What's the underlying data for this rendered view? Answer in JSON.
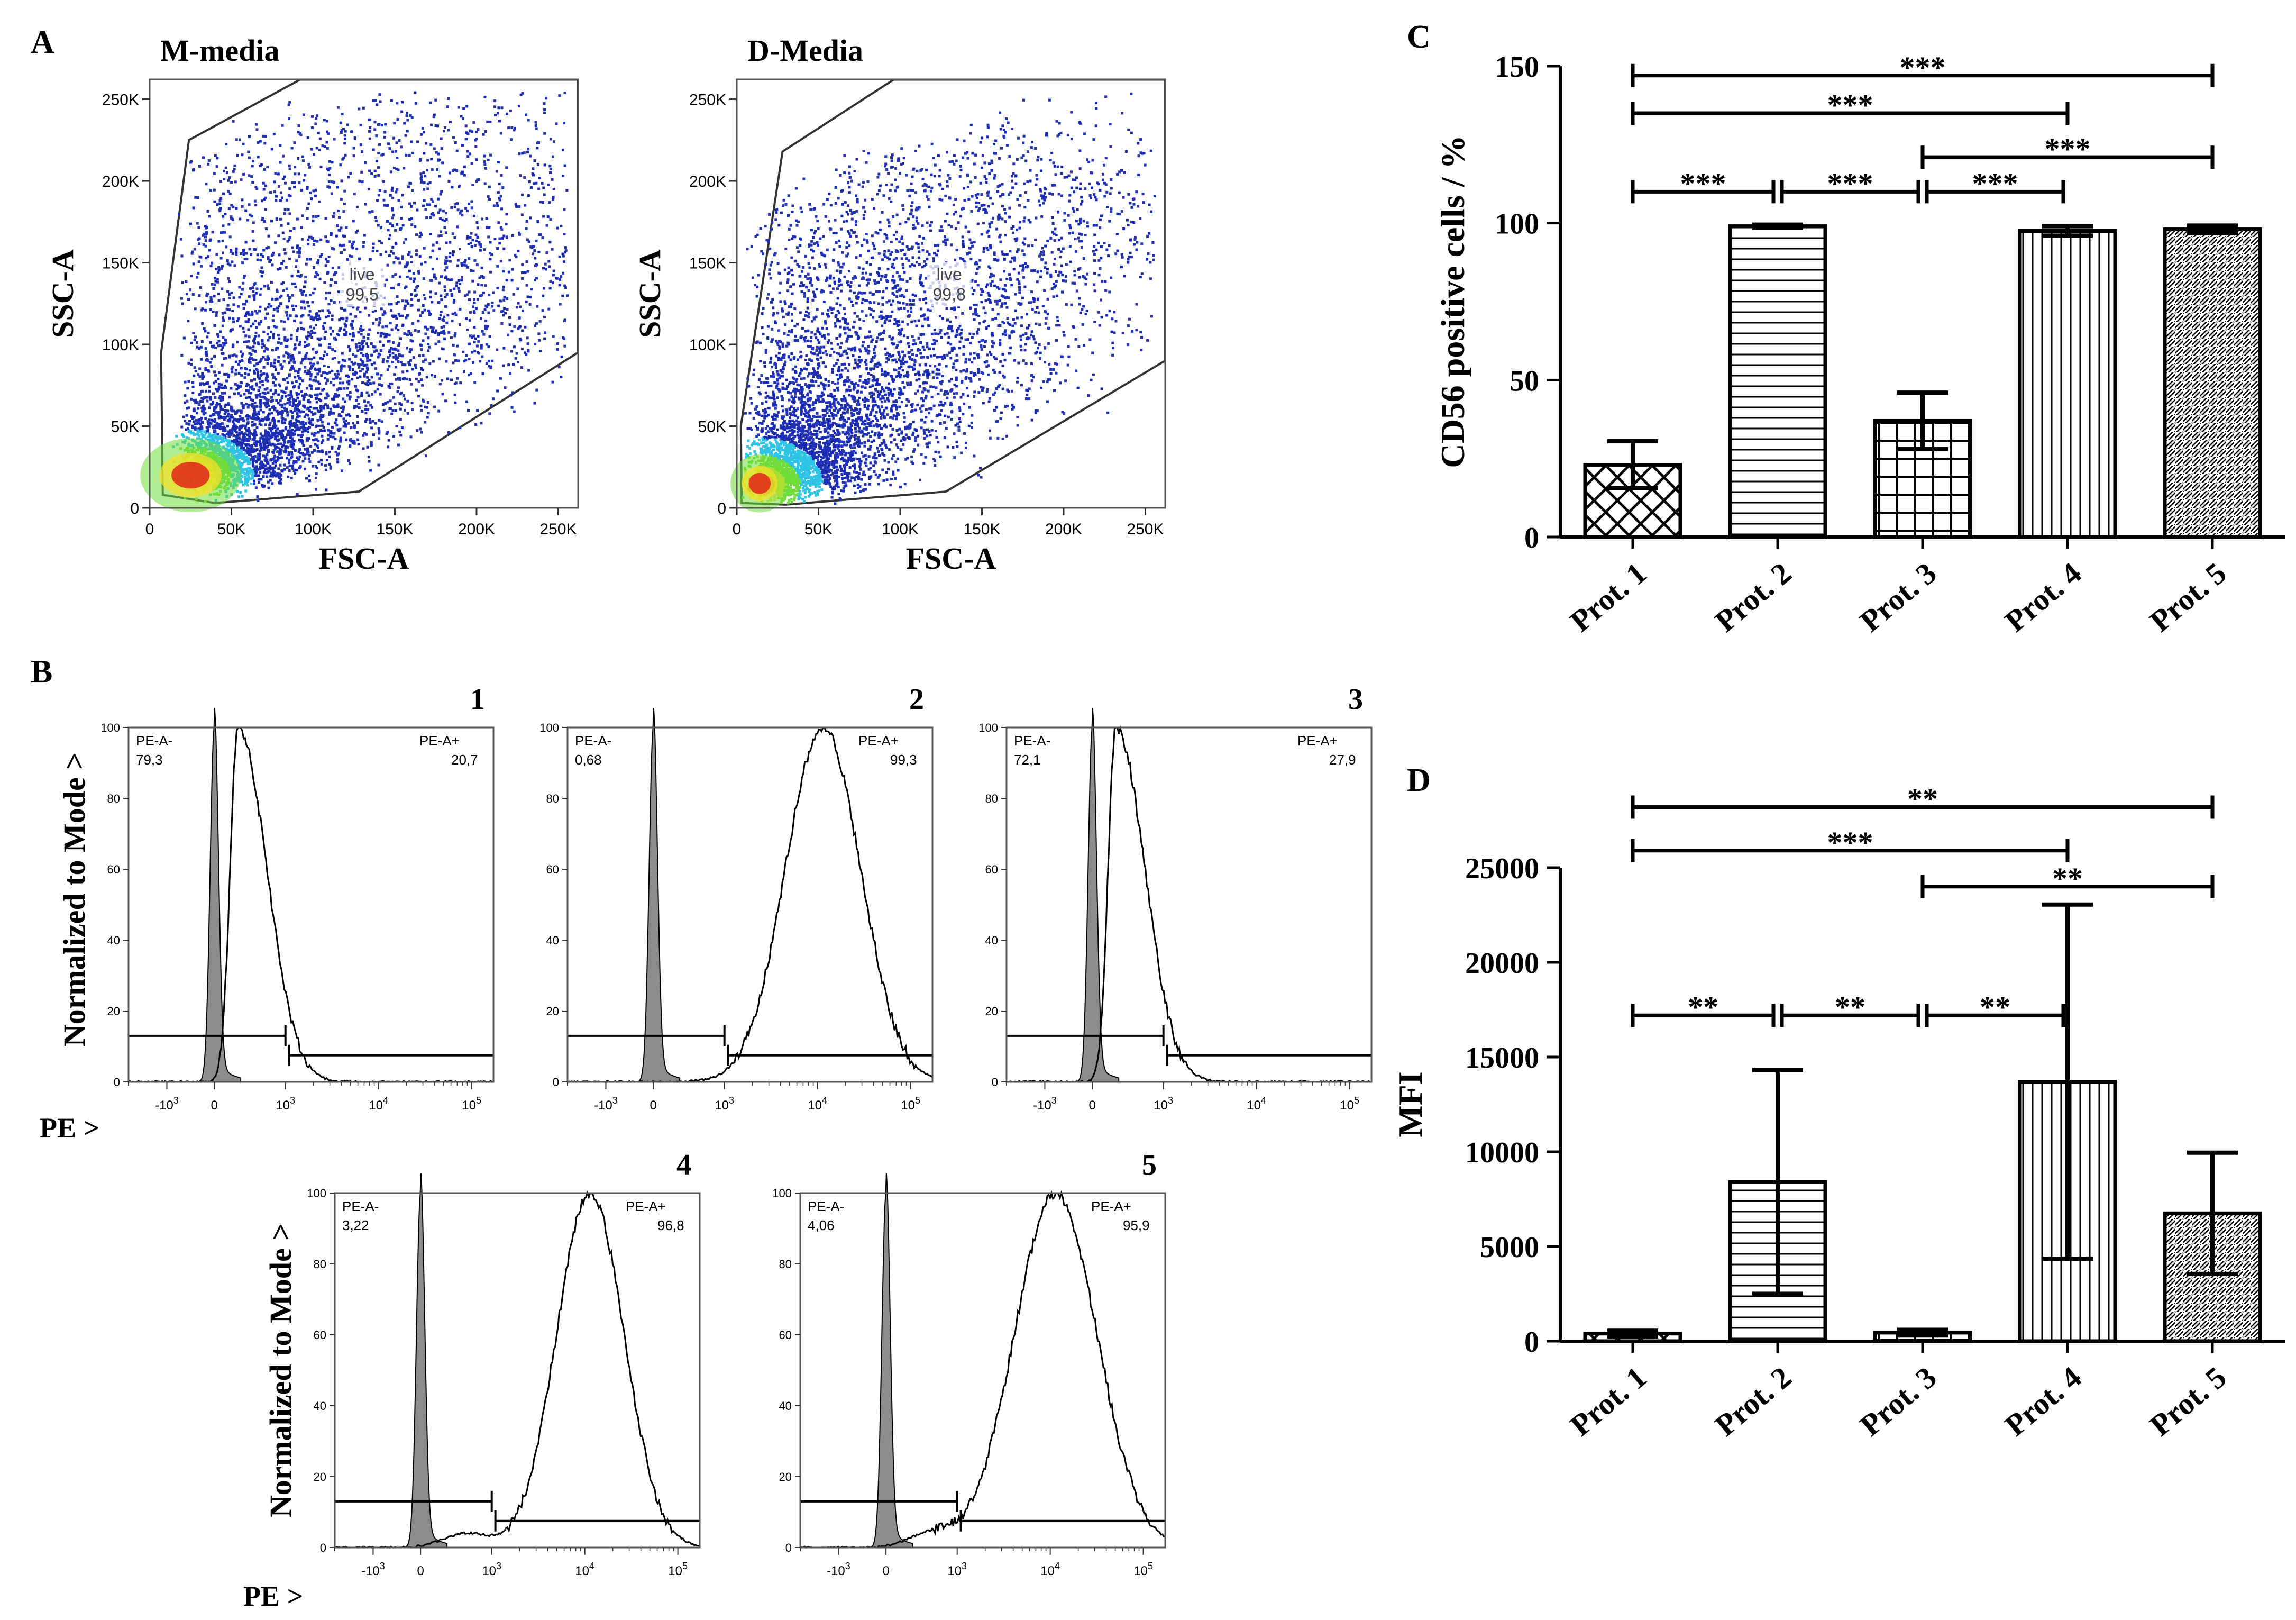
{
  "panel_labels": {
    "A": "A",
    "B": "B",
    "C": "C",
    "D": "D"
  },
  "colors": {
    "ink": "#000000",
    "fill_grey": "#8c8c8c",
    "dot_blue": "#1f2fb4",
    "dot_cyan": "#2ec4e6",
    "dot_green": "#6fdc3a",
    "dot_yellow": "#f2e22a",
    "dot_red": "#e0261a"
  },
  "chart_data": [
    {
      "id": "A-mmedia",
      "type": "scatter",
      "title": "M-media",
      "xlabel": "FSC-A",
      "ylabel": "SSC-A",
      "xticks": [
        "0",
        "50K",
        "100K",
        "150K",
        "200K",
        "250K"
      ],
      "yticks": [
        "0",
        "50K",
        "100K",
        "150K",
        "200K",
        "250K"
      ],
      "xlim": [
        0,
        262144
      ],
      "ylim": [
        0,
        262144
      ],
      "gate": {
        "name": "live",
        "percent": "99,5"
      },
      "density_center": [
        25000,
        20000
      ]
    },
    {
      "id": "A-dmedia",
      "type": "scatter",
      "title": "D-Media",
      "xlabel": "FSC-A",
      "ylabel": "SSC-A",
      "xticks": [
        "0",
        "50K",
        "100K",
        "150K",
        "200K",
        "250K"
      ],
      "yticks": [
        "0",
        "50K",
        "100K",
        "150K",
        "200K",
        "250K"
      ],
      "xlim": [
        0,
        262144
      ],
      "ylim": [
        0,
        262144
      ],
      "gate": {
        "name": "live",
        "percent": "99,8"
      },
      "density_center": [
        14000,
        15000
      ]
    },
    {
      "id": "B-histograms",
      "type": "area",
      "ylabel": "Normalized to Mode >",
      "xlabel": "PE >",
      "yticks": [
        "0",
        "20",
        "40",
        "60",
        "80",
        "100"
      ],
      "xticks": [
        "-10^3",
        "0",
        "10^3",
        "10^4",
        "10^5"
      ],
      "neg_gate": "PE-A-",
      "pos_gate": "PE-A+",
      "panels": [
        {
          "label": "1",
          "neg": "79,3",
          "pos": "20,7"
        },
        {
          "label": "2",
          "neg": "0,68",
          "pos": "99,3"
        },
        {
          "label": "3",
          "neg": "72,1",
          "pos": "27,9"
        },
        {
          "label": "4",
          "neg": "3,22",
          "pos": "96,8"
        },
        {
          "label": "5",
          "neg": "4,06",
          "pos": "95,9"
        }
      ]
    },
    {
      "id": "C",
      "type": "bar",
      "ylabel": "CD56 positive cells / %",
      "categories": [
        "Prot. 1",
        "Prot. 2",
        "Prot. 3",
        "Prot. 4",
        "Prot. 5"
      ],
      "values": [
        23,
        99,
        37,
        97.5,
        98
      ],
      "errors": [
        7.5,
        0.5,
        9,
        1.5,
        1.2
      ],
      "yticks": [
        "0",
        "50",
        "100",
        "150"
      ],
      "ylim": [
        0,
        150
      ],
      "significance": [
        {
          "from": 0,
          "to": 4,
          "y": 147,
          "label": "***"
        },
        {
          "from": 0,
          "to": 3,
          "y": 135,
          "label": "***"
        },
        {
          "from": 2,
          "to": 4,
          "y": 121,
          "label": "***"
        },
        {
          "from": 0,
          "to": 1,
          "y": 110,
          "label": "***"
        },
        {
          "from": 1,
          "to": 2,
          "y": 110,
          "label": "***"
        },
        {
          "from": 2,
          "to": 3,
          "y": 110,
          "label": "***"
        }
      ]
    },
    {
      "id": "D",
      "type": "bar",
      "ylabel": "MFI",
      "categories": [
        "Prot. 1",
        "Prot. 2",
        "Prot. 3",
        "Prot. 4",
        "Prot. 5"
      ],
      "values": [
        400,
        8400,
        450,
        13700,
        6750
      ],
      "errors": [
        150,
        5900,
        150,
        9350,
        3200
      ],
      "yticks": [
        "0",
        "5000",
        "10000",
        "15000",
        "20000",
        "25000"
      ],
      "ylim": [
        0,
        25000
      ],
      "significance": [
        {
          "from": 0,
          "to": 4,
          "y": 28200,
          "label": "**"
        },
        {
          "from": 0,
          "to": 3,
          "y": 25900,
          "label": "***"
        },
        {
          "from": 2,
          "to": 4,
          "y": 24000,
          "label": "**"
        },
        {
          "from": 0,
          "to": 1,
          "y": 17200,
          "label": "**"
        },
        {
          "from": 1,
          "to": 2,
          "y": 17200,
          "label": "**"
        },
        {
          "from": 2,
          "to": 3,
          "y": 17200,
          "label": "**"
        }
      ]
    }
  ]
}
